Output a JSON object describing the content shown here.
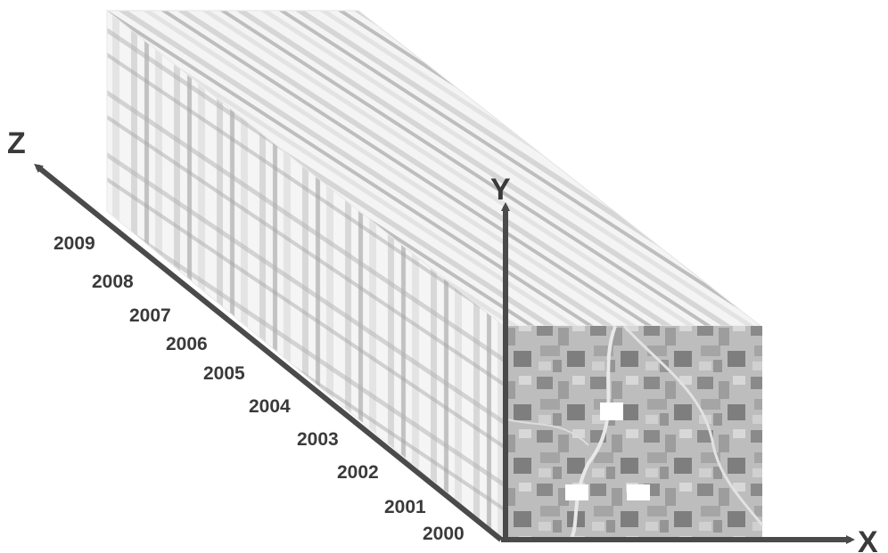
{
  "axes": {
    "x": "X",
    "y": "Y",
    "z": "Z"
  },
  "years": [
    "2000",
    "2001",
    "2002",
    "2003",
    "2004",
    "2005",
    "2006",
    "2007",
    "2008",
    "2009"
  ],
  "colors": {
    "axis": "#4a4a4a",
    "text": "#3a3a3a",
    "cube_light": "#f2f2f2",
    "cube_dark": "#8c8c8c",
    "front_face": "#b9b9b9"
  }
}
